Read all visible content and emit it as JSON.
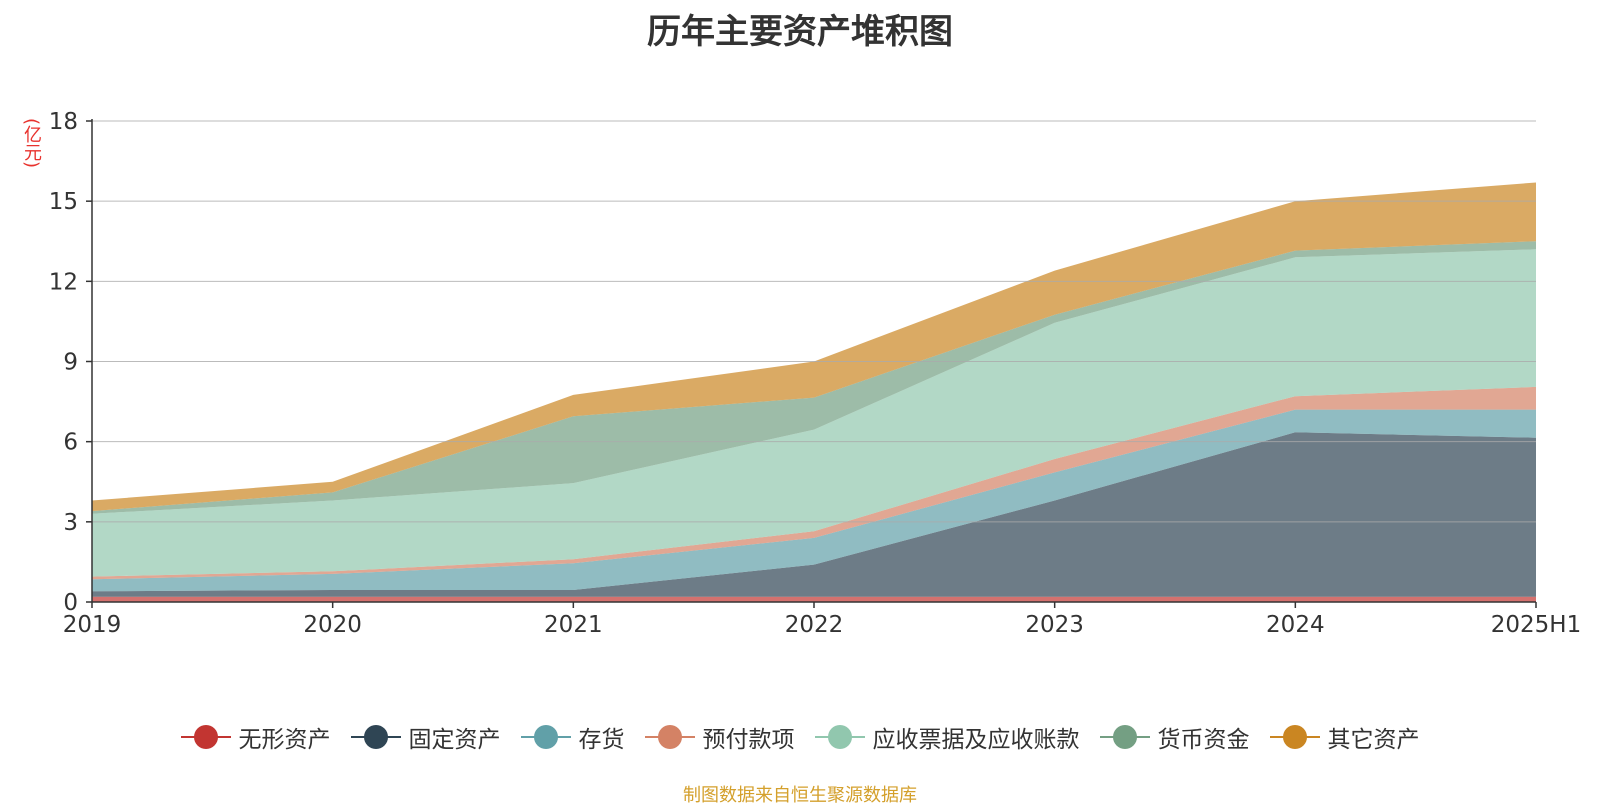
{
  "chart_data": {
    "type": "area",
    "stacked": true,
    "title": "历年主要资产堆积图",
    "y_unit": "(亿元)",
    "categories": [
      "2019",
      "2020",
      "2021",
      "2022",
      "2023",
      "2024",
      "2025H1"
    ],
    "ylim": [
      0,
      18
    ],
    "yticks": [
      0,
      3,
      6,
      9,
      12,
      15,
      18
    ],
    "grid": true,
    "legend_position": "bottom",
    "series": [
      {
        "name": "无形资产",
        "color": "#c23531",
        "values": [
          0.2,
          0.2,
          0.2,
          0.2,
          0.2,
          0.2,
          0.2
        ]
      },
      {
        "name": "固定资产",
        "color": "#2f4554",
        "values": [
          0.2,
          0.25,
          0.25,
          1.2,
          3.6,
          6.15,
          5.95
        ]
      },
      {
        "name": "存货",
        "color": "#61a0a8",
        "values": [
          0.45,
          0.6,
          1.0,
          1.0,
          1.05,
          0.85,
          1.05
        ]
      },
      {
        "name": "预付款项",
        "color": "#d48265",
        "values": [
          0.1,
          0.1,
          0.15,
          0.25,
          0.5,
          0.5,
          0.85
        ]
      },
      {
        "name": "应收票据及应收账款",
        "color": "#91c7ae",
        "values": [
          2.35,
          2.65,
          2.85,
          3.8,
          5.1,
          5.2,
          5.15
        ]
      },
      {
        "name": "货币资金",
        "color": "#749f83",
        "values": [
          0.1,
          0.3,
          2.5,
          1.2,
          0.3,
          0.25,
          0.3
        ]
      },
      {
        "name": "其它资产",
        "color": "#ca8622",
        "values": [
          0.4,
          0.4,
          0.8,
          1.35,
          1.65,
          1.85,
          2.2
        ]
      }
    ]
  },
  "source_note": "制图数据来自恒生聚源数据库"
}
